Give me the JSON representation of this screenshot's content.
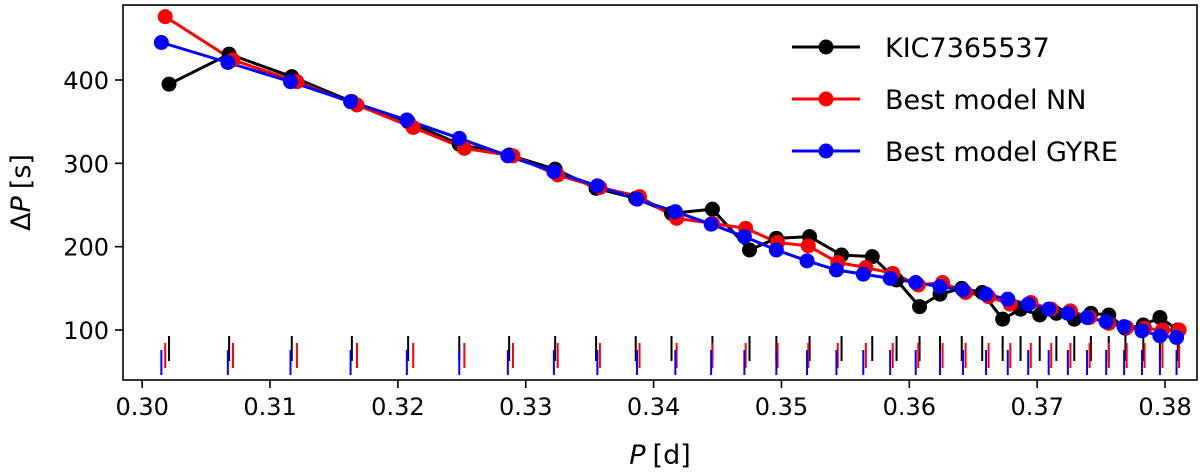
{
  "chart_data": {
    "type": "line",
    "title": "",
    "xlabel": {
      "symbol": "P",
      "unit": "[d]"
    },
    "ylabel": {
      "symbol": "ΔP",
      "unit": "[s]"
    },
    "xlim": [
      0.2985,
      0.3825
    ],
    "ylim": [
      40,
      490
    ],
    "xticks": [
      0.3,
      0.31,
      0.32,
      0.33,
      0.34,
      0.35,
      0.36,
      0.37,
      0.38
    ],
    "xtick_labels": [
      "0.30",
      "0.31",
      "0.32",
      "0.33",
      "0.34",
      "0.35",
      "0.36",
      "0.37",
      "0.38"
    ],
    "yticks": [
      100,
      200,
      300,
      400
    ],
    "ytick_labels": [
      "100",
      "200",
      "300",
      "400"
    ],
    "grid": false,
    "legend_position": "top-right",
    "series": [
      {
        "name": "KIC7365537",
        "color": "#000000",
        "x": [
          0.3021,
          0.3068,
          0.3117,
          0.3164,
          0.3208,
          0.3248,
          0.3287,
          0.3323,
          0.3355,
          0.3386,
          0.3414,
          0.3446,
          0.3475,
          0.3496,
          0.3522,
          0.3547,
          0.3571,
          0.359,
          0.3608,
          0.3624,
          0.3641,
          0.3657,
          0.3673,
          0.3687,
          0.3702,
          0.3715,
          0.3729,
          0.3742,
          0.3756,
          0.3769,
          0.3783,
          0.3796,
          0.381
        ],
        "y": [
          395,
          431,
          404,
          374,
          350,
          323,
          310,
          293,
          270,
          258,
          240,
          245,
          196,
          210,
          212,
          190,
          188,
          160,
          128,
          143,
          150,
          145,
          113,
          125,
          118,
          120,
          113,
          120,
          118,
          102,
          106,
          115,
          100
        ]
      },
      {
        "name": "Best model NN",
        "color": "#ff0000",
        "x": [
          0.3018,
          0.3071,
          0.3121,
          0.3168,
          0.3212,
          0.3252,
          0.329,
          0.3325,
          0.3358,
          0.3389,
          0.3418,
          0.3446,
          0.3472,
          0.3497,
          0.3521,
          0.3544,
          0.3566,
          0.3587,
          0.3607,
          0.3626,
          0.3644,
          0.3662,
          0.3679,
          0.3695,
          0.3711,
          0.3726,
          0.3741,
          0.3756,
          0.377,
          0.3784,
          0.3798,
          0.3811
        ],
        "y": [
          476,
          424,
          398,
          370,
          343,
          318,
          309,
          286,
          271,
          260,
          234,
          228,
          222,
          205,
          201,
          181,
          175,
          168,
          154,
          157,
          145,
          140,
          131,
          133,
          125,
          123,
          115,
          108,
          103,
          102,
          100,
          100
        ]
      },
      {
        "name": "Best model GYRE",
        "color": "#0000ff",
        "x": [
          0.3015,
          0.3067,
          0.3116,
          0.3163,
          0.3207,
          0.3248,
          0.3286,
          0.3322,
          0.3356,
          0.3387,
          0.3417,
          0.3445,
          0.3471,
          0.3496,
          0.352,
          0.3543,
          0.3564,
          0.3585,
          0.3605,
          0.3624,
          0.3642,
          0.366,
          0.3677,
          0.3693,
          0.3709,
          0.3724,
          0.3739,
          0.3754,
          0.3768,
          0.3782,
          0.3796,
          0.3809
        ],
        "y": [
          445,
          421,
          398,
          374,
          352,
          330,
          309,
          290,
          273,
          257,
          242,
          227,
          212,
          196,
          183,
          172,
          167,
          162,
          157,
          152,
          148,
          143,
          137,
          131,
          125,
          120,
          115,
          110,
          104,
          99,
          93,
          91
        ]
      }
    ]
  }
}
